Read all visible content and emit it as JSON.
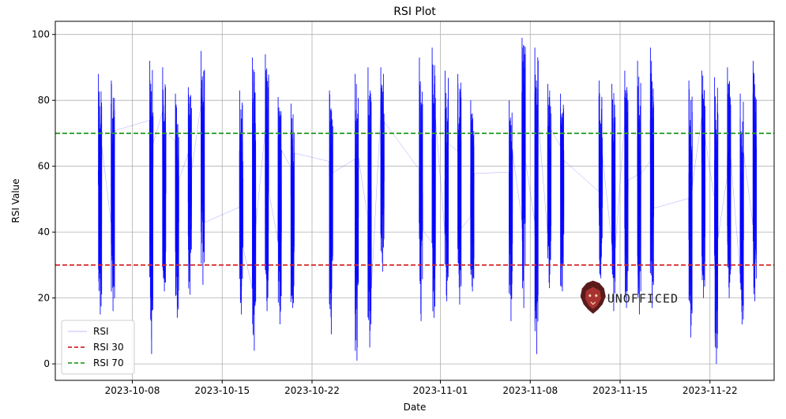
{
  "chart_data": {
    "type": "line",
    "title": "RSI Plot",
    "xlabel": "Date",
    "ylabel": "RSI Value",
    "xlim": [
      "2023-10-02",
      "2023-11-27"
    ],
    "ylim": [
      -5,
      104
    ],
    "x_ticks": [
      "2023-10-08",
      "2023-10-15",
      "2023-10-22",
      "2023-11-01",
      "2023-11-08",
      "2023-11-15",
      "2023-11-22"
    ],
    "y_ticks": [
      0,
      20,
      40,
      60,
      80,
      100
    ],
    "grid": true,
    "legend_position": "lower-left",
    "series": [
      {
        "name": "RSI",
        "color": "#0000ff",
        "style": "line",
        "trading_sessions": [
          {
            "date": "2023-10-05",
            "min": 15,
            "max": 88
          },
          {
            "date": "2023-10-06",
            "min": 16,
            "max": 86
          },
          {
            "date": "2023-10-09",
            "min": 3,
            "max": 92
          },
          {
            "date": "2023-10-10",
            "min": 22,
            "max": 90
          },
          {
            "date": "2023-10-11",
            "min": 14,
            "max": 82
          },
          {
            "date": "2023-10-12",
            "min": 21,
            "max": 84
          },
          {
            "date": "2023-10-13",
            "min": 24,
            "max": 95
          },
          {
            "date": "2023-10-16",
            "min": 15,
            "max": 83
          },
          {
            "date": "2023-10-17",
            "min": 4,
            "max": 93
          },
          {
            "date": "2023-10-18",
            "min": 16,
            "max": 94
          },
          {
            "date": "2023-10-19",
            "min": 12,
            "max": 81
          },
          {
            "date": "2023-10-20",
            "min": 17,
            "max": 79
          },
          {
            "date": "2023-10-23",
            "min": 9,
            "max": 83
          },
          {
            "date": "2023-10-25",
            "min": 1,
            "max": 88
          },
          {
            "date": "2023-10-26",
            "min": 5,
            "max": 90
          },
          {
            "date": "2023-10-27",
            "min": 28,
            "max": 90
          },
          {
            "date": "2023-10-30",
            "min": 13,
            "max": 93
          },
          {
            "date": "2023-10-31",
            "min": 14,
            "max": 96
          },
          {
            "date": "2023-11-01",
            "min": 19,
            "max": 89
          },
          {
            "date": "2023-11-02",
            "min": 18,
            "max": 88
          },
          {
            "date": "2023-11-03",
            "min": 22,
            "max": 80
          },
          {
            "date": "2023-11-06",
            "min": 13,
            "max": 80
          },
          {
            "date": "2023-11-07",
            "min": 17,
            "max": 99
          },
          {
            "date": "2023-11-08",
            "min": 3,
            "max": 96
          },
          {
            "date": "2023-11-09",
            "min": 23,
            "max": 85
          },
          {
            "date": "2023-11-10",
            "min": 22,
            "max": 82
          },
          {
            "date": "2023-11-13",
            "min": 26,
            "max": 86
          },
          {
            "date": "2023-11-14",
            "min": 16,
            "max": 85
          },
          {
            "date": "2023-11-15",
            "min": 17,
            "max": 89
          },
          {
            "date": "2023-11-16",
            "min": 15,
            "max": 92
          },
          {
            "date": "2023-11-17",
            "min": 17,
            "max": 96
          },
          {
            "date": "2023-11-20",
            "min": 8,
            "max": 86
          },
          {
            "date": "2023-11-21",
            "min": 20,
            "max": 89
          },
          {
            "date": "2023-11-22",
            "min": 0,
            "max": 87
          },
          {
            "date": "2023-11-23",
            "min": 20,
            "max": 90
          },
          {
            "date": "2023-11-24",
            "min": 12,
            "max": 82
          },
          {
            "date": "2023-11-25",
            "min": 19,
            "max": 92
          }
        ]
      },
      {
        "name": "RSI 30",
        "color": "#d62728",
        "style": "dashed",
        "value": 30
      },
      {
        "name": "RSI 70",
        "color": "#2ca02c",
        "style": "dashed",
        "value": 70
      }
    ],
    "annotations": [
      {
        "text": "UNOFFICED",
        "date": "2023-11-14",
        "value": 20
      }
    ]
  }
}
